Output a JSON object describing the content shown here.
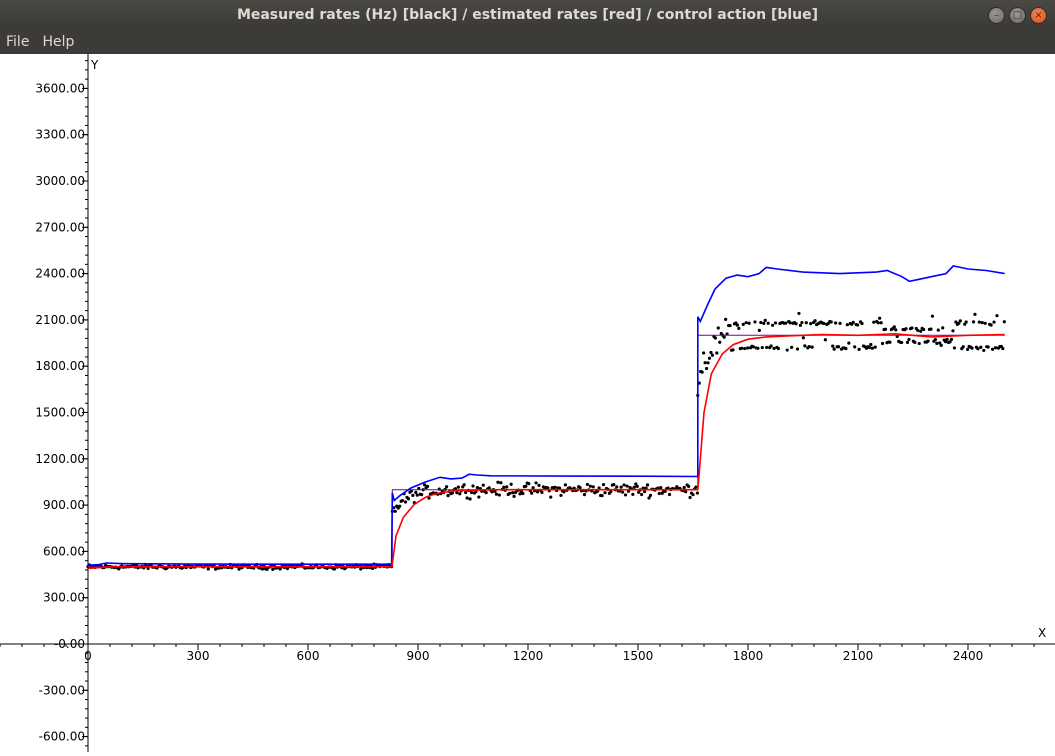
{
  "window": {
    "title": "Measured rates (Hz) [black] / estimated rates [red] / control action [blue]",
    "buttons": [
      "minimize",
      "maximize",
      "close"
    ]
  },
  "menu": {
    "items": [
      "File",
      "Help"
    ]
  },
  "chart_data": {
    "type": "line",
    "xlabel": "X",
    "ylabel": "Y",
    "xlim": [
      0,
      2520
    ],
    "ylim": [
      -700,
      3800
    ],
    "x_ticks": [
      0,
      300,
      600,
      900,
      1200,
      1500,
      1800,
      2100,
      2400
    ],
    "x_tick_labels": [
      "0",
      "300",
      "600",
      "900",
      "1200",
      "1500",
      "1800",
      "2100",
      "2400"
    ],
    "y_ticks": [
      3600,
      3300,
      3000,
      2700,
      2400,
      2100,
      1800,
      1500,
      1200,
      900,
      600,
      300,
      0,
      -300,
      -600
    ],
    "y_tick_labels": [
      "3600.00",
      "3300.00",
      "3000.00",
      "2700.00",
      "2400.00",
      "2100.00",
      "1800.00",
      "1500.00",
      "1200.00",
      "900.00",
      "600.00",
      "300.00",
      "-0.00",
      "-300.00",
      "-600.00"
    ],
    "series": [
      {
        "color": "#800080",
        "style": "step",
        "x": [
          0,
          830,
          830,
          1663,
          1663,
          2500
        ],
        "y": [
          500,
          500,
          1000,
          1000,
          2000,
          2000
        ]
      },
      {
        "color": "#0000ff",
        "style": "line",
        "x": [
          0,
          30,
          50,
          100,
          300,
          600,
          828,
          830,
          835,
          850,
          880,
          920,
          960,
          990,
          1020,
          1040,
          1060,
          1100,
          1300,
          1500,
          1663,
          1663,
          1670,
          1690,
          1710,
          1740,
          1770,
          1800,
          1830,
          1850,
          1880,
          1950,
          2050,
          2150,
          2180,
          2220,
          2240,
          2260,
          2300,
          2340,
          2360,
          2400,
          2450,
          2500
        ],
        "y": [
          510,
          515,
          525,
          520,
          518,
          517,
          517,
          980,
          930,
          960,
          1010,
          1050,
          1080,
          1070,
          1075,
          1100,
          1095,
          1090,
          1088,
          1087,
          1085,
          2120,
          2090,
          2200,
          2300,
          2370,
          2390,
          2380,
          2400,
          2440,
          2430,
          2410,
          2400,
          2410,
          2420,
          2380,
          2350,
          2360,
          2380,
          2400,
          2450,
          2430,
          2420,
          2400
        ]
      },
      {
        "color": "#ff0000",
        "style": "line",
        "x": [
          0,
          30,
          60,
          100,
          300,
          600,
          828,
          830,
          840,
          860,
          890,
          920,
          950,
          1000,
          1100,
          1300,
          1500,
          1663,
          1665,
          1680,
          1700,
          1730,
          1760,
          1800,
          1850,
          1900,
          1950,
          2000,
          2100,
          2200,
          2300,
          2400,
          2500
        ],
        "y": [
          490,
          495,
          500,
          500,
          500,
          500,
          500,
          520,
          700,
          820,
          905,
          950,
          975,
          993,
          1000,
          1000,
          1000,
          1000,
          1050,
          1500,
          1750,
          1880,
          1940,
          1975,
          1990,
          1995,
          2000,
          2005,
          2000,
          2010,
          1990,
          2000,
          2005
        ]
      }
    ],
    "measured_points": {
      "color": "#000000",
      "style": "scatter",
      "note": "noisy measured rates (black dots) around the setpoint segments",
      "segments": [
        {
          "x_start": 0,
          "x_end": 828,
          "level": 500,
          "spread": 12
        },
        {
          "x_start": 830,
          "x_end": 1663,
          "level": 1000,
          "spread": 35
        },
        {
          "x_start": 1663,
          "x_end": 2500,
          "level": 2000,
          "spread": 90
        }
      ]
    }
  }
}
